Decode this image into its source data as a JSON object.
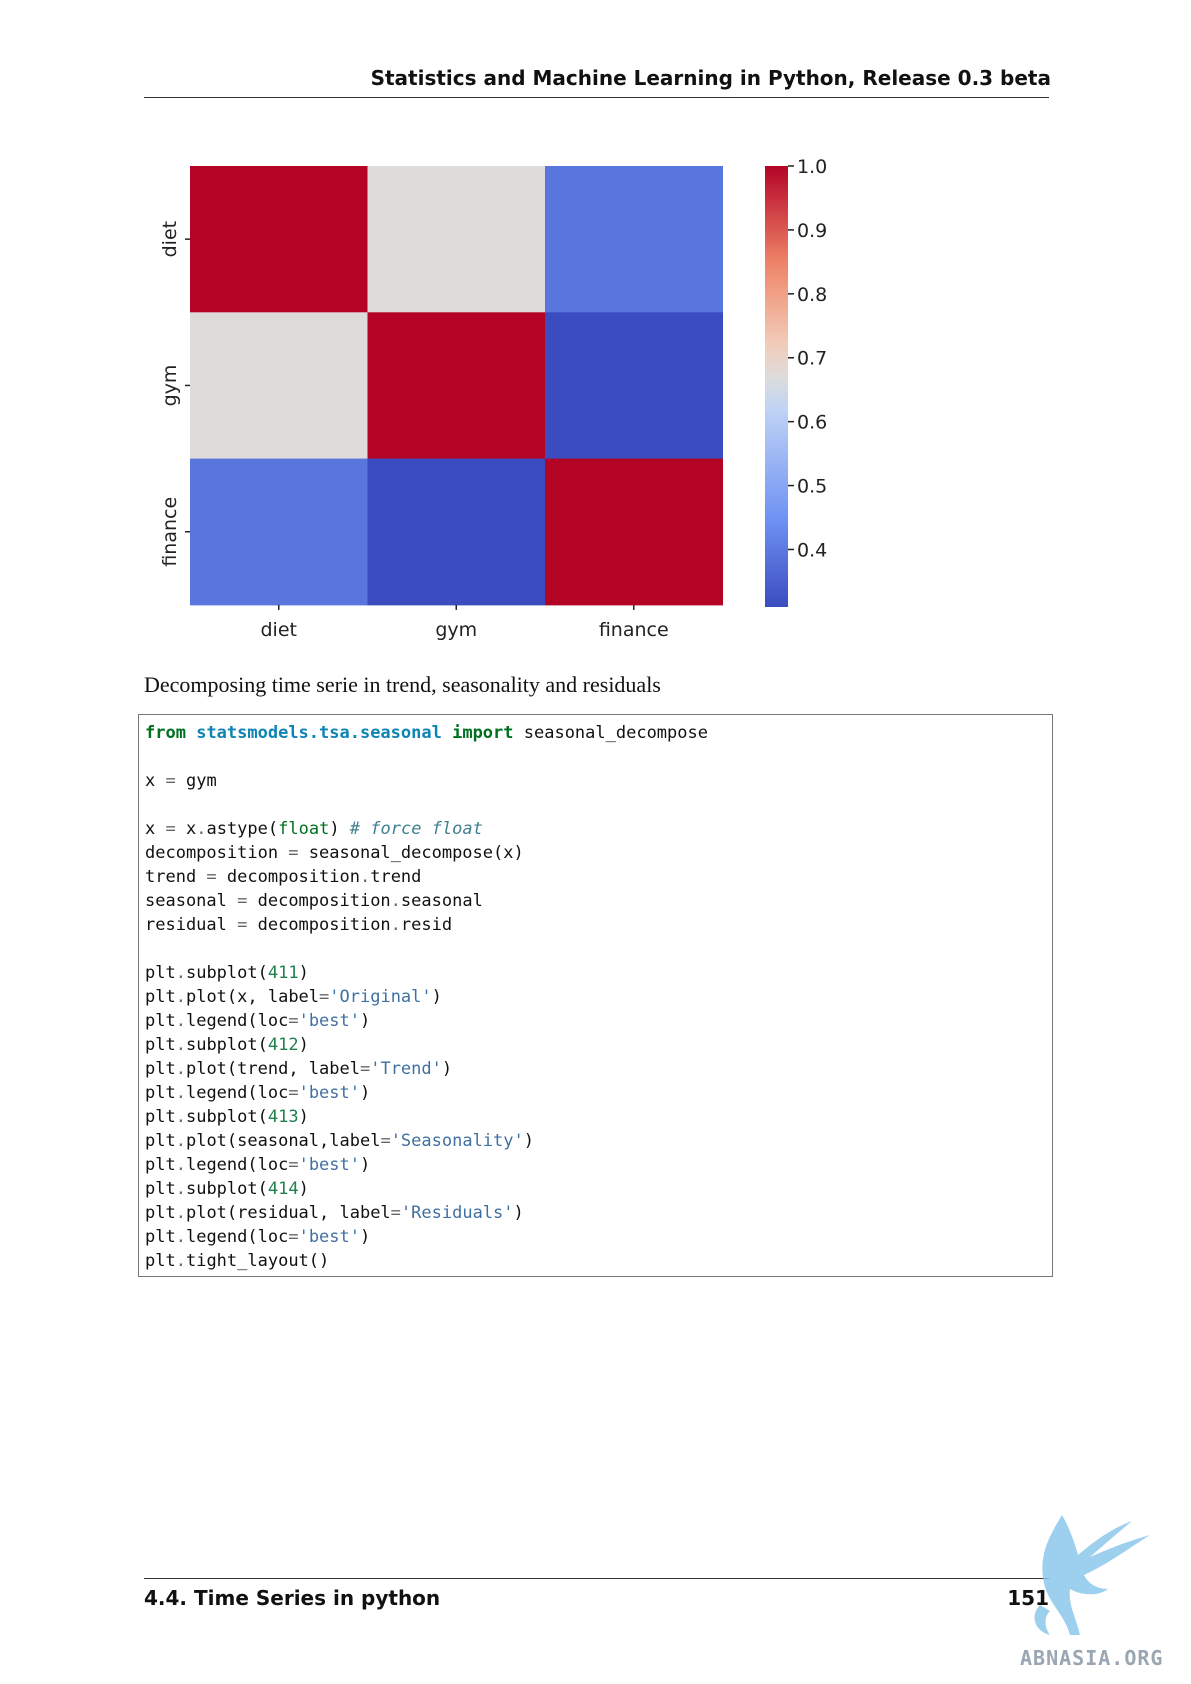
{
  "header": {
    "title": "Statistics and Machine Learning in Python, Release 0.3 beta"
  },
  "chart_data": {
    "type": "heatmap",
    "rows": [
      "diet",
      "gym",
      "finance"
    ],
    "columns": [
      "diet",
      "gym",
      "finance"
    ],
    "values": [
      [
        1.0,
        0.67,
        0.39
      ],
      [
        0.67,
        1.0,
        0.31
      ],
      [
        0.39,
        0.31,
        1.0
      ]
    ],
    "colormap": "coolwarm",
    "colorbar": {
      "vmin": 0.31,
      "vmax": 1.0,
      "ticks": [
        "1.0",
        "0.9",
        "0.8",
        "0.7",
        "0.6",
        "0.5",
        "0.4"
      ]
    }
  },
  "caption": "Decomposing time serie in trend, seasonality and residuals",
  "code": [
    [
      [
        "kw",
        "from"
      ],
      [
        "t",
        " "
      ],
      [
        "mod",
        "statsmodels.tsa.seasonal"
      ],
      [
        "t",
        " "
      ],
      [
        "kw",
        "import"
      ],
      [
        "t",
        " seasonal_decompose"
      ]
    ],
    [],
    [
      [
        "t",
        "x "
      ],
      [
        "op",
        "="
      ],
      [
        "t",
        " gym"
      ]
    ],
    [],
    [
      [
        "t",
        "x "
      ],
      [
        "op",
        "="
      ],
      [
        "t",
        " x"
      ],
      [
        "op",
        "."
      ],
      [
        "t",
        "astype("
      ],
      [
        "bi",
        "float"
      ],
      [
        "t",
        ") "
      ],
      [
        "com",
        "# force float"
      ]
    ],
    [
      [
        "t",
        "decomposition "
      ],
      [
        "op",
        "="
      ],
      [
        "t",
        " seasonal_decompose(x)"
      ]
    ],
    [
      [
        "t",
        "trend "
      ],
      [
        "op",
        "="
      ],
      [
        "t",
        " decomposition"
      ],
      [
        "op",
        "."
      ],
      [
        "t",
        "trend"
      ]
    ],
    [
      [
        "t",
        "seasonal "
      ],
      [
        "op",
        "="
      ],
      [
        "t",
        " decomposition"
      ],
      [
        "op",
        "."
      ],
      [
        "t",
        "seasonal"
      ]
    ],
    [
      [
        "t",
        "residual "
      ],
      [
        "op",
        "="
      ],
      [
        "t",
        " decomposition"
      ],
      [
        "op",
        "."
      ],
      [
        "t",
        "resid"
      ]
    ],
    [],
    [
      [
        "t",
        "plt"
      ],
      [
        "op",
        "."
      ],
      [
        "t",
        "subplot("
      ],
      [
        "num",
        "411"
      ],
      [
        "t",
        ")"
      ]
    ],
    [
      [
        "t",
        "plt"
      ],
      [
        "op",
        "."
      ],
      [
        "t",
        "plot(x, label"
      ],
      [
        "op",
        "="
      ],
      [
        "str",
        "'Original'"
      ],
      [
        "t",
        ")"
      ]
    ],
    [
      [
        "t",
        "plt"
      ],
      [
        "op",
        "."
      ],
      [
        "t",
        "legend(loc"
      ],
      [
        "op",
        "="
      ],
      [
        "str",
        "'best'"
      ],
      [
        "t",
        ")"
      ]
    ],
    [
      [
        "t",
        "plt"
      ],
      [
        "op",
        "."
      ],
      [
        "t",
        "subplot("
      ],
      [
        "num",
        "412"
      ],
      [
        "t",
        ")"
      ]
    ],
    [
      [
        "t",
        "plt"
      ],
      [
        "op",
        "."
      ],
      [
        "t",
        "plot(trend, label"
      ],
      [
        "op",
        "="
      ],
      [
        "str",
        "'Trend'"
      ],
      [
        "t",
        ")"
      ]
    ],
    [
      [
        "t",
        "plt"
      ],
      [
        "op",
        "."
      ],
      [
        "t",
        "legend(loc"
      ],
      [
        "op",
        "="
      ],
      [
        "str",
        "'best'"
      ],
      [
        "t",
        ")"
      ]
    ],
    [
      [
        "t",
        "plt"
      ],
      [
        "op",
        "."
      ],
      [
        "t",
        "subplot("
      ],
      [
        "num",
        "413"
      ],
      [
        "t",
        ")"
      ]
    ],
    [
      [
        "t",
        "plt"
      ],
      [
        "op",
        "."
      ],
      [
        "t",
        "plot(seasonal,label"
      ],
      [
        "op",
        "="
      ],
      [
        "str",
        "'Seasonality'"
      ],
      [
        "t",
        ")"
      ]
    ],
    [
      [
        "t",
        "plt"
      ],
      [
        "op",
        "."
      ],
      [
        "t",
        "legend(loc"
      ],
      [
        "op",
        "="
      ],
      [
        "str",
        "'best'"
      ],
      [
        "t",
        ")"
      ]
    ],
    [
      [
        "t",
        "plt"
      ],
      [
        "op",
        "."
      ],
      [
        "t",
        "subplot("
      ],
      [
        "num",
        "414"
      ],
      [
        "t",
        ")"
      ]
    ],
    [
      [
        "t",
        "plt"
      ],
      [
        "op",
        "."
      ],
      [
        "t",
        "plot(residual, label"
      ],
      [
        "op",
        "="
      ],
      [
        "str",
        "'Residuals'"
      ],
      [
        "t",
        ")"
      ]
    ],
    [
      [
        "t",
        "plt"
      ],
      [
        "op",
        "."
      ],
      [
        "t",
        "legend(loc"
      ],
      [
        "op",
        "="
      ],
      [
        "str",
        "'best'"
      ],
      [
        "t",
        ")"
      ]
    ],
    [
      [
        "t",
        "plt"
      ],
      [
        "op",
        "."
      ],
      [
        "t",
        "tight_layout()"
      ]
    ]
  ],
  "footer": {
    "section": "4.4.  Time Series in python",
    "page_number": "151"
  },
  "watermark": {
    "text": "ABNASIA.ORG"
  }
}
